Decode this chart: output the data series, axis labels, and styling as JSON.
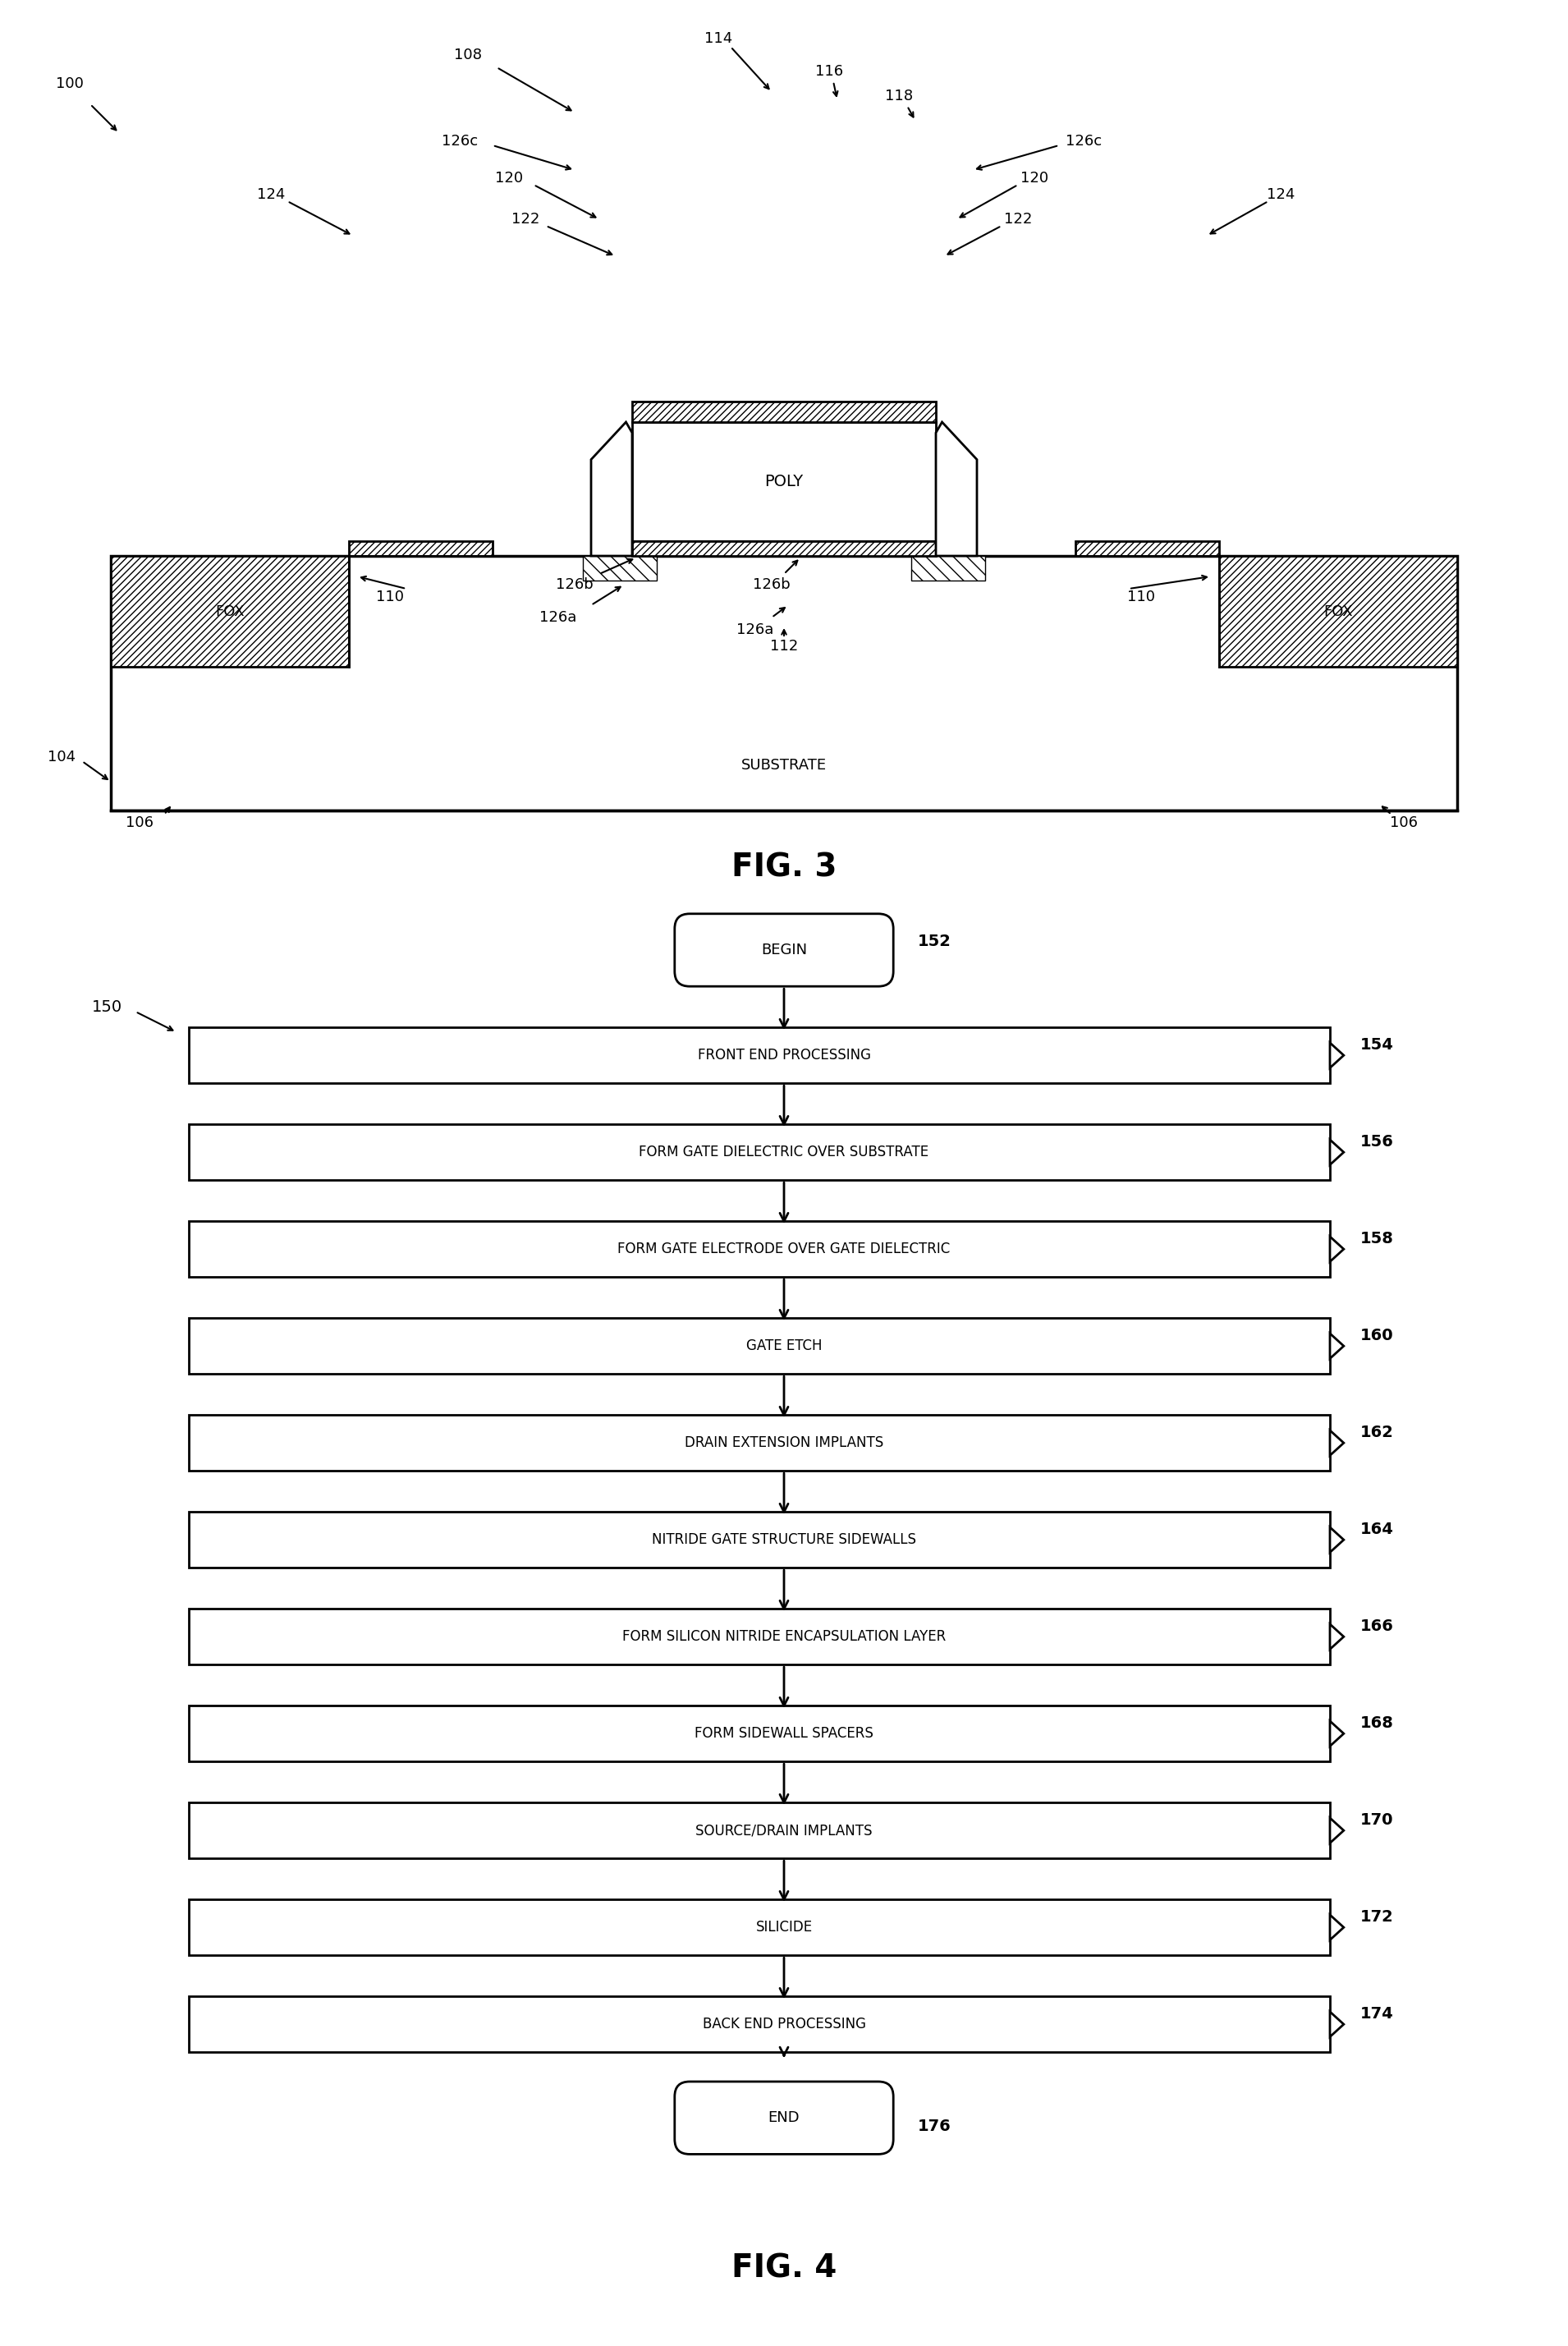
{
  "bg_color": "#ffffff",
  "fig3_title": "FIG. 3",
  "fig4_title": "FIG. 4",
  "flowchart": {
    "begin_label": "BEGIN",
    "begin_ref": "152",
    "end_label": "END",
    "end_ref": "176",
    "steps": [
      {
        "label": "FRONT END PROCESSING",
        "ref": "154"
      },
      {
        "label": "FORM GATE DIELECTRIC OVER SUBSTRATE",
        "ref": "156"
      },
      {
        "label": "FORM GATE ELECTRODE OVER GATE DIELECTRIC",
        "ref": "158"
      },
      {
        "label": "GATE ETCH",
        "ref": "160"
      },
      {
        "label": "DRAIN EXTENSION IMPLANTS",
        "ref": "162"
      },
      {
        "label": "NITRIDE GATE STRUCTURE SIDEWALLS",
        "ref": "164"
      },
      {
        "label": "FORM SILICON NITRIDE ENCAPSULATION LAYER",
        "ref": "166"
      },
      {
        "label": "FORM SIDEWALL SPACERS",
        "ref": "168"
      },
      {
        "label": "SOURCE/DRAIN IMPLANTS",
        "ref": "170"
      },
      {
        "label": "SILICIDE",
        "ref": "172"
      },
      {
        "label": "BACK END PROCESSING",
        "ref": "174"
      }
    ]
  }
}
